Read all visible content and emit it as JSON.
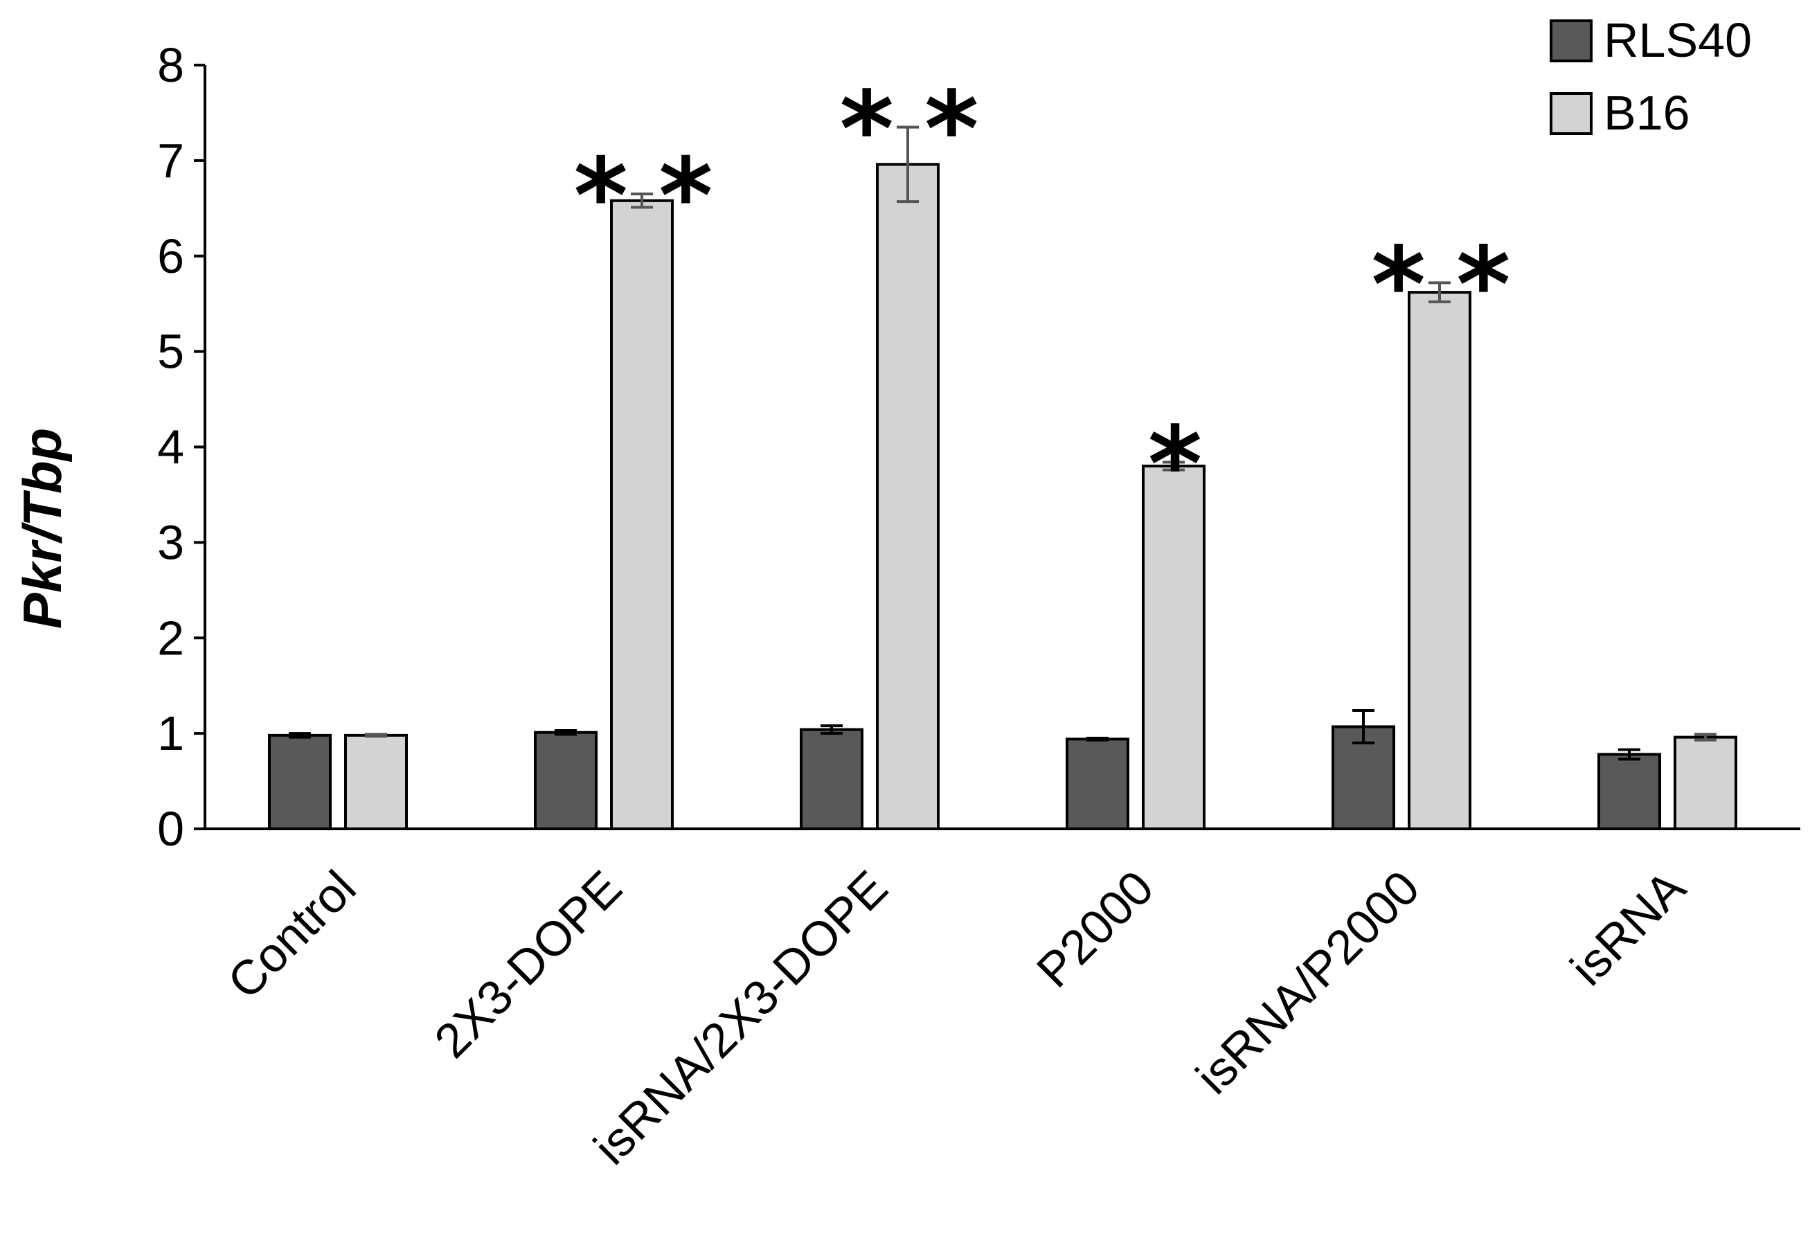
{
  "chart_data": {
    "type": "bar",
    "ylabel": "Pkr/Tbp",
    "xlabel": "",
    "ylim": [
      0,
      8
    ],
    "yticks": [
      0,
      1,
      2,
      3,
      4,
      5,
      6,
      7,
      8
    ],
    "grid": false,
    "legend_position": "top-right",
    "categories": [
      "Control",
      "2X3-DOPE",
      "isRNA/2X3-DOPE",
      "P2000",
      "isRNA/P2000",
      "isRNA"
    ],
    "series": [
      {
        "name": "RLS40",
        "color": "#595959",
        "values": [
          0.98,
          1.01,
          1.04,
          0.94,
          1.07,
          0.78
        ],
        "errors": [
          0.02,
          0.02,
          0.04,
          0.01,
          0.17,
          0.05
        ]
      },
      {
        "name": "B16",
        "color": "#d3d3d3",
        "values": [
          0.98,
          6.58,
          6.96,
          3.8,
          5.62,
          0.96
        ],
        "errors": [
          0.01,
          0.07,
          0.39,
          0.04,
          0.1,
          0.03
        ]
      }
    ],
    "significance": [
      "",
      "**",
      "**",
      "*",
      "**",
      ""
    ],
    "bar_edge_color": "#000000",
    "axis_color": "#000000",
    "error_bar_color_dark": "#000000",
    "error_bar_color_light": "#555555"
  }
}
